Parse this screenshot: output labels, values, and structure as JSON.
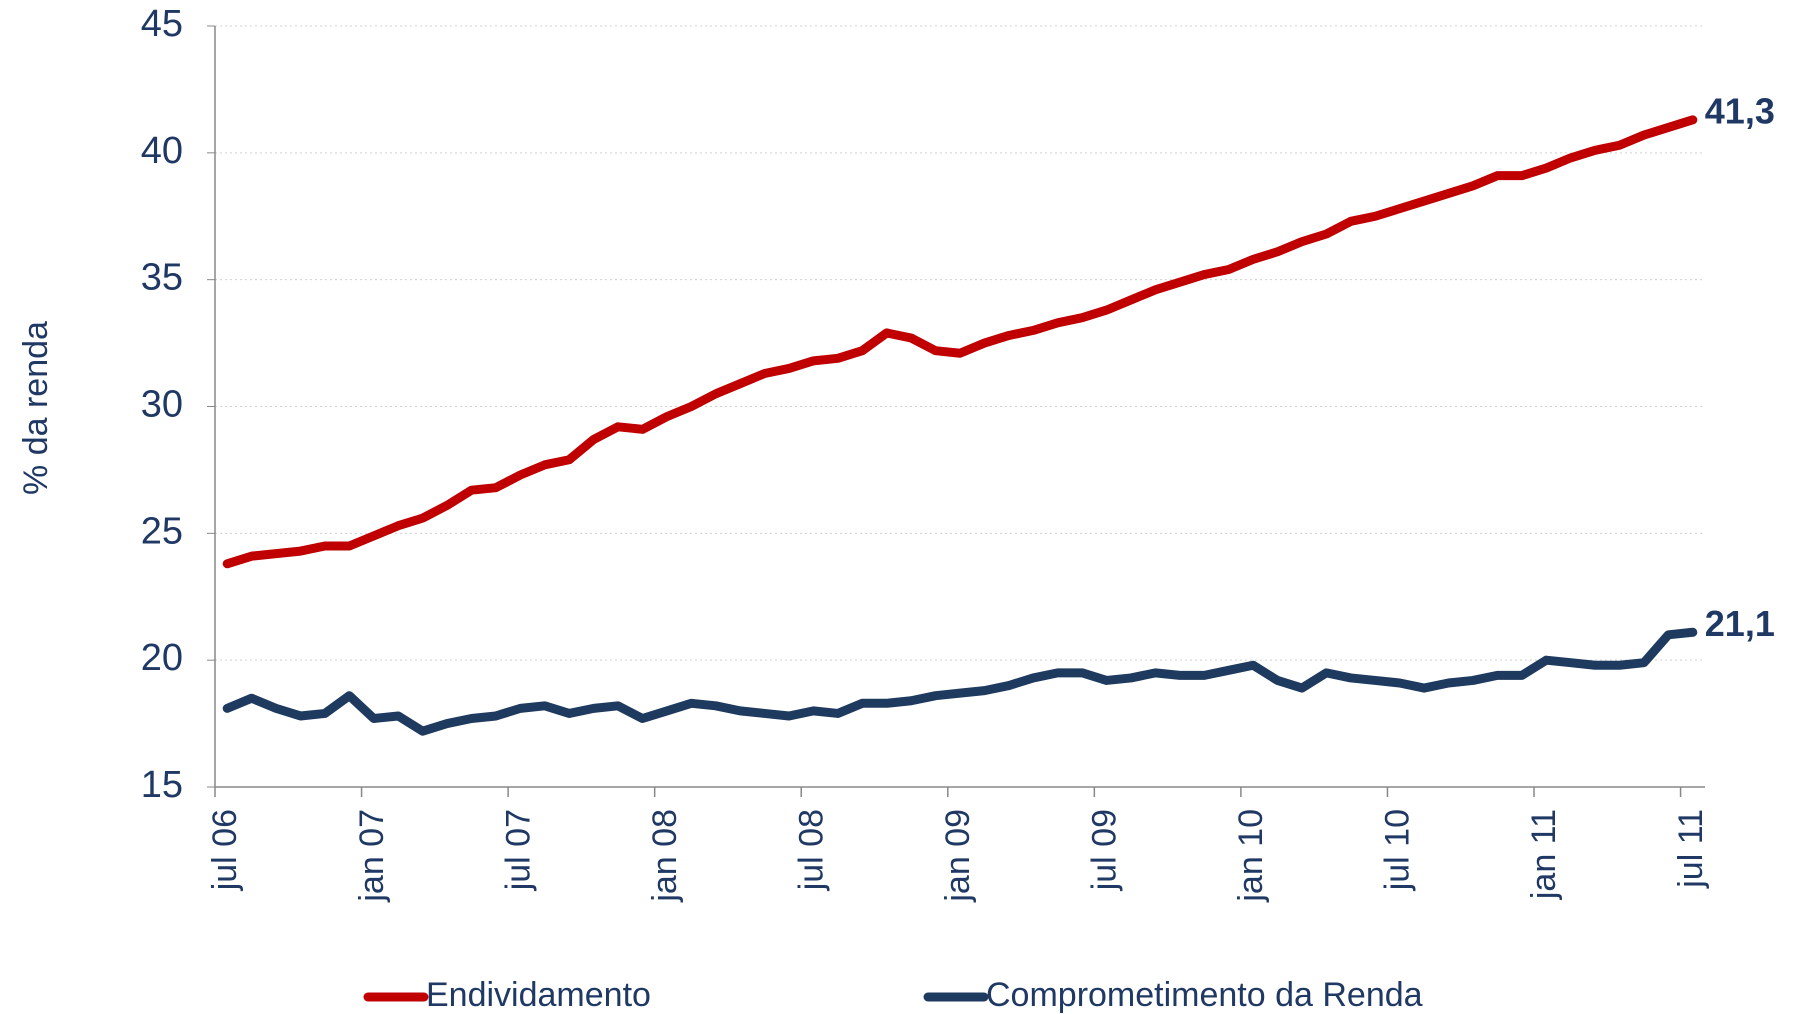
{
  "chart_data": {
    "type": "line",
    "ylabel": "% da renda",
    "categories": [
      "jul  06",
      null,
      null,
      null,
      null,
      null,
      "jan  07",
      null,
      null,
      null,
      null,
      null,
      "jul  07",
      null,
      null,
      null,
      null,
      null,
      "jan  08",
      null,
      null,
      null,
      null,
      null,
      "jul  08",
      null,
      null,
      null,
      null,
      null,
      "jan  09",
      null,
      null,
      null,
      null,
      null,
      "jul  09",
      null,
      null,
      null,
      null,
      null,
      "jan  10",
      null,
      null,
      null,
      null,
      null,
      "jul  10",
      null,
      null,
      null,
      null,
      null,
      "jan  11",
      null,
      null,
      null,
      null,
      null,
      "jul  11"
    ],
    "series": [
      {
        "name": "Endividamento",
        "color": "#c00000",
        "values": [
          23.8,
          24.1,
          24.2,
          24.3,
          24.5,
          24.5,
          24.9,
          25.3,
          25.6,
          26.1,
          26.7,
          26.8,
          27.3,
          27.7,
          27.9,
          28.7,
          29.2,
          29.1,
          29.6,
          30.0,
          30.5,
          30.9,
          31.3,
          31.5,
          31.8,
          31.9,
          32.2,
          32.9,
          32.7,
          32.2,
          32.1,
          32.5,
          32.8,
          33.0,
          33.3,
          33.5,
          33.8,
          34.2,
          34.6,
          34.9,
          35.2,
          35.4,
          35.8,
          36.1,
          36.5,
          36.8,
          37.3,
          37.5,
          37.8,
          38.1,
          38.4,
          38.7,
          39.1,
          39.1,
          39.4,
          39.8,
          40.1,
          40.3,
          40.7,
          41.0,
          41.3
        ],
        "value_labels": [
          null,
          null,
          null,
          null,
          null,
          null,
          null,
          null,
          null,
          null,
          null,
          null,
          null,
          null,
          null,
          null,
          null,
          null,
          null,
          null,
          null,
          null,
          null,
          null,
          null,
          null,
          null,
          null,
          null,
          null,
          null,
          null,
          null,
          null,
          null,
          null,
          null,
          null,
          null,
          null,
          null,
          null,
          null,
          null,
          null,
          null,
          null,
          null,
          null,
          null,
          null,
          null,
          null,
          null,
          null,
          null,
          null,
          null,
          null,
          null,
          "41,3"
        ]
      },
      {
        "name": "Comprometimento da Renda",
        "color": "#1f3a5f",
        "values": [
          18.1,
          18.5,
          18.1,
          17.8,
          17.9,
          18.6,
          17.7,
          17.8,
          17.2,
          17.5,
          17.7,
          17.8,
          18.1,
          18.2,
          17.9,
          18.1,
          18.2,
          17.7,
          18.0,
          18.3,
          18.2,
          18.0,
          17.9,
          17.8,
          18.0,
          17.9,
          18.3,
          18.3,
          18.4,
          18.6,
          18.7,
          18.8,
          19.0,
          19.3,
          19.5,
          19.5,
          19.2,
          19.3,
          19.5,
          19.4,
          19.4,
          19.6,
          19.8,
          19.2,
          18.9,
          19.5,
          19.3,
          19.2,
          19.1,
          18.9,
          19.1,
          19.2,
          19.4,
          19.4,
          20.0,
          19.9,
          19.8,
          19.8,
          19.9,
          21.0,
          21.1
        ],
        "value_labels": [
          null,
          null,
          null,
          null,
          null,
          null,
          null,
          null,
          null,
          null,
          null,
          null,
          null,
          null,
          null,
          null,
          null,
          null,
          null,
          null,
          null,
          null,
          null,
          null,
          null,
          null,
          null,
          null,
          null,
          null,
          null,
          null,
          null,
          null,
          null,
          null,
          null,
          null,
          null,
          null,
          null,
          null,
          null,
          null,
          null,
          null,
          null,
          null,
          null,
          null,
          null,
          null,
          null,
          null,
          null,
          null,
          null,
          null,
          null,
          null,
          "21,1"
        ]
      }
    ],
    "ylim": [
      15,
      45
    ],
    "yticks": [
      15,
      20,
      25,
      30,
      35,
      40,
      45
    ],
    "grid": true,
    "legend": "bottom"
  }
}
